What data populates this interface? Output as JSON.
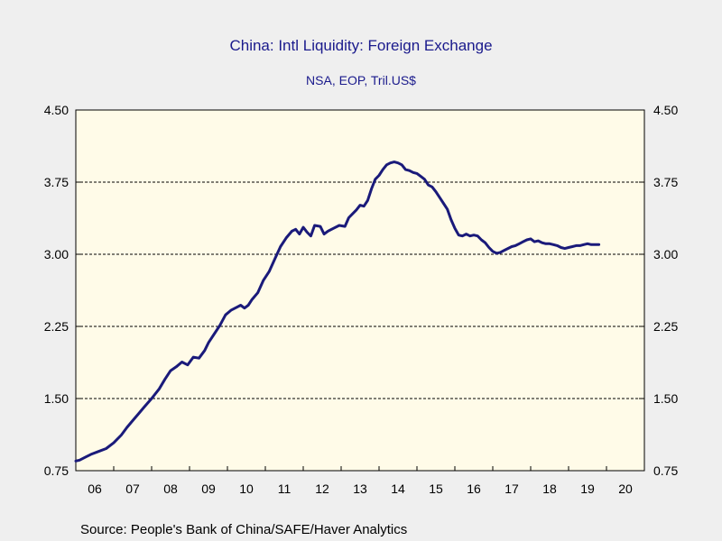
{
  "chart_data": {
    "type": "line",
    "title": "China: Intl Liquidity: Foreign Exchange",
    "subtitle": "NSA, EOP, Tril.US$",
    "source": "Source:  People's Bank of China/SAFE/Haver Analytics",
    "ylim": [
      0.75,
      4.5
    ],
    "xlim": [
      2006.0,
      2021.0
    ],
    "y_ticks": [
      "0.75",
      "1.50",
      "2.25",
      "3.00",
      "3.75",
      "4.50"
    ],
    "y_tick_values": [
      0.75,
      1.5,
      2.25,
      3.0,
      3.75,
      4.5
    ],
    "x_tick_labels": [
      "06",
      "07",
      "08",
      "09",
      "10",
      "11",
      "12",
      "13",
      "14",
      "15",
      "16",
      "17",
      "18",
      "19",
      "20"
    ],
    "grid": "horizontal dashed",
    "plot_background": "#fffbe8",
    "line_color": "#1a1a7a",
    "series": [
      {
        "values": [
          [
            2006.0,
            0.85
          ],
          [
            2006.1,
            0.86
          ],
          [
            2006.25,
            0.89
          ],
          [
            2006.4,
            0.92
          ],
          [
            2006.6,
            0.95
          ],
          [
            2006.8,
            0.98
          ],
          [
            2007.0,
            1.04
          ],
          [
            2007.2,
            1.12
          ],
          [
            2007.35,
            1.2
          ],
          [
            2007.5,
            1.27
          ],
          [
            2007.65,
            1.34
          ],
          [
            2007.8,
            1.41
          ],
          [
            2008.0,
            1.5
          ],
          [
            2008.2,
            1.6
          ],
          [
            2008.35,
            1.7
          ],
          [
            2008.5,
            1.79
          ],
          [
            2008.65,
            1.83
          ],
          [
            2008.8,
            1.88
          ],
          [
            2008.95,
            1.85
          ],
          [
            2009.1,
            1.93
          ],
          [
            2009.25,
            1.92
          ],
          [
            2009.4,
            2.0
          ],
          [
            2009.5,
            2.08
          ],
          [
            2009.65,
            2.17
          ],
          [
            2009.8,
            2.26
          ],
          [
            2009.95,
            2.37
          ],
          [
            2010.1,
            2.42
          ],
          [
            2010.25,
            2.45
          ],
          [
            2010.35,
            2.47
          ],
          [
            2010.45,
            2.44
          ],
          [
            2010.55,
            2.47
          ],
          [
            2010.65,
            2.53
          ],
          [
            2010.8,
            2.6
          ],
          [
            2010.95,
            2.73
          ],
          [
            2011.1,
            2.82
          ],
          [
            2011.25,
            2.95
          ],
          [
            2011.4,
            3.08
          ],
          [
            2011.55,
            3.17
          ],
          [
            2011.7,
            3.24
          ],
          [
            2011.8,
            3.26
          ],
          [
            2011.9,
            3.21
          ],
          [
            2012.0,
            3.28
          ],
          [
            2012.1,
            3.23
          ],
          [
            2012.2,
            3.19
          ],
          [
            2012.3,
            3.3
          ],
          [
            2012.45,
            3.29
          ],
          [
            2012.55,
            3.21
          ],
          [
            2012.65,
            3.24
          ],
          [
            2012.8,
            3.27
          ],
          [
            2012.95,
            3.3
          ],
          [
            2013.1,
            3.29
          ],
          [
            2013.2,
            3.38
          ],
          [
            2013.3,
            3.42
          ],
          [
            2013.4,
            3.46
          ],
          [
            2013.5,
            3.51
          ],
          [
            2013.6,
            3.5
          ],
          [
            2013.7,
            3.56
          ],
          [
            2013.8,
            3.68
          ],
          [
            2013.9,
            3.78
          ],
          [
            2014.0,
            3.82
          ],
          [
            2014.1,
            3.88
          ],
          [
            2014.2,
            3.93
          ],
          [
            2014.3,
            3.95
          ],
          [
            2014.4,
            3.96
          ],
          [
            2014.5,
            3.95
          ],
          [
            2014.6,
            3.93
          ],
          [
            2014.7,
            3.88
          ],
          [
            2014.8,
            3.87
          ],
          [
            2014.9,
            3.85
          ],
          [
            2015.0,
            3.84
          ],
          [
            2015.1,
            3.81
          ],
          [
            2015.2,
            3.78
          ],
          [
            2015.3,
            3.72
          ],
          [
            2015.4,
            3.7
          ],
          [
            2015.5,
            3.65
          ],
          [
            2015.6,
            3.59
          ],
          [
            2015.7,
            3.53
          ],
          [
            2015.8,
            3.47
          ],
          [
            2015.9,
            3.36
          ],
          [
            2016.0,
            3.27
          ],
          [
            2016.1,
            3.2
          ],
          [
            2016.2,
            3.19
          ],
          [
            2016.3,
            3.21
          ],
          [
            2016.4,
            3.19
          ],
          [
            2016.5,
            3.2
          ],
          [
            2016.6,
            3.19
          ],
          [
            2016.7,
            3.15
          ],
          [
            2016.8,
            3.12
          ],
          [
            2016.9,
            3.07
          ],
          [
            2017.0,
            3.03
          ],
          [
            2017.1,
            3.01
          ],
          [
            2017.2,
            3.02
          ],
          [
            2017.3,
            3.04
          ],
          [
            2017.4,
            3.06
          ],
          [
            2017.5,
            3.08
          ],
          [
            2017.6,
            3.09
          ],
          [
            2017.7,
            3.11
          ],
          [
            2017.8,
            3.13
          ],
          [
            2017.9,
            3.15
          ],
          [
            2018.0,
            3.16
          ],
          [
            2018.1,
            3.13
          ],
          [
            2018.2,
            3.14
          ],
          [
            2018.3,
            3.12
          ],
          [
            2018.4,
            3.11
          ],
          [
            2018.5,
            3.11
          ],
          [
            2018.6,
            3.1
          ],
          [
            2018.7,
            3.09
          ],
          [
            2018.8,
            3.07
          ],
          [
            2018.9,
            3.06
          ],
          [
            2019.0,
            3.07
          ],
          [
            2019.1,
            3.08
          ],
          [
            2019.2,
            3.09
          ],
          [
            2019.3,
            3.09
          ],
          [
            2019.4,
            3.1
          ],
          [
            2019.5,
            3.11
          ],
          [
            2019.6,
            3.1
          ],
          [
            2019.7,
            3.1
          ],
          [
            2019.8,
            3.1
          ]
        ]
      }
    ]
  }
}
